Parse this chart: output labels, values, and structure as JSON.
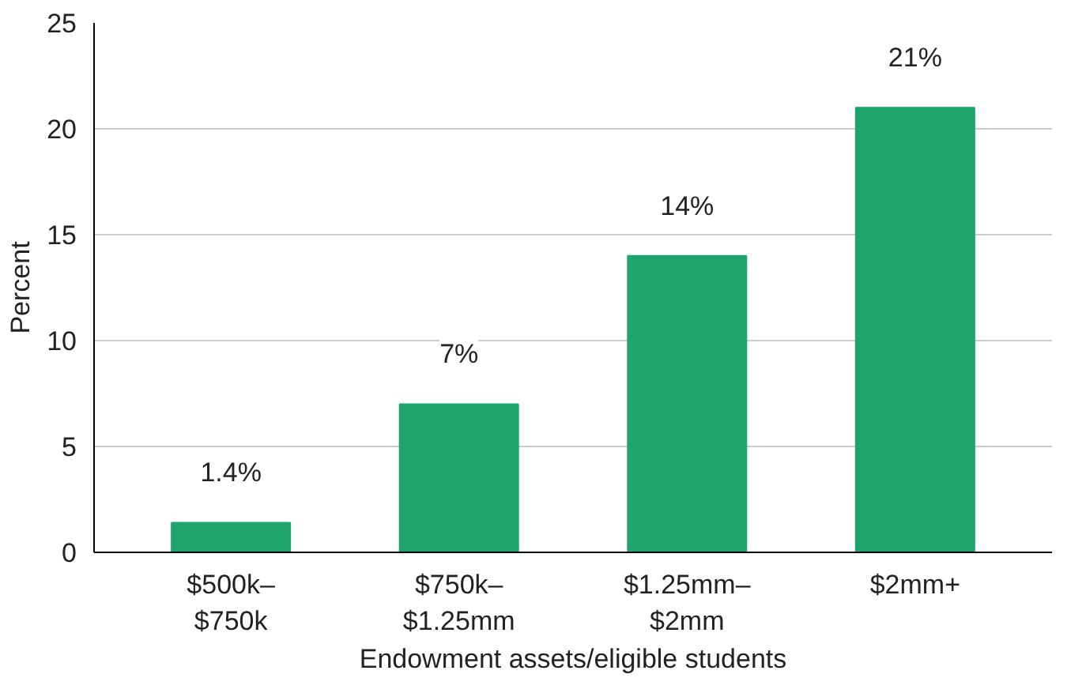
{
  "chart_data": {
    "type": "bar",
    "xlabel": "Endowment assets/eligible students",
    "ylabel": "Percent",
    "categories": [
      "$500k–\n$750k",
      "$750k–\n$1.25mm",
      "$1.25mm–\n$2mm",
      "$2mm+"
    ],
    "values": [
      1.4,
      7,
      14,
      21
    ],
    "value_labels": [
      "1.4%",
      "7%",
      "14%",
      "21%"
    ],
    "color": "#1fa46e",
    "ylim": [
      0,
      25
    ],
    "yticks": [
      0,
      5,
      10,
      15,
      20,
      25
    ],
    "grid": "y"
  }
}
